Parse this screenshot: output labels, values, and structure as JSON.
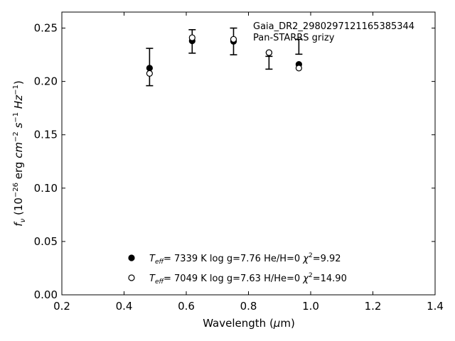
{
  "chart_data": {
    "type": "scatter",
    "xlabel": "Wavelength (μm)",
    "ylabel": "f_ν (10^-26 erg cm^-2 s^-1 Hz^-1)",
    "xlim": [
      0.2,
      1.4
    ],
    "ylim": [
      0.0,
      0.265
    ],
    "xticks": [
      "0.2",
      "0.4",
      "0.6",
      "0.8",
      "1.0",
      "1.2",
      "1.4"
    ],
    "yticks": [
      "0.00",
      "0.05",
      "0.10",
      "0.15",
      "0.20",
      "0.25"
    ],
    "xtick_values": [
      0.2,
      0.4,
      0.6,
      0.8,
      1.0,
      1.2,
      1.4
    ],
    "ytick_values": [
      0.0,
      0.05,
      0.1,
      0.15,
      0.2,
      0.25
    ],
    "grid": false,
    "annotation_lines": [
      "Gaia_DR2_2980297121165385344",
      "Pan-STARRS grizy"
    ],
    "observed": {
      "x": [
        0.482,
        0.619,
        0.752,
        0.866,
        0.962
      ],
      "y": [
        0.2135,
        0.2375,
        0.2375,
        0.2175,
        0.2325
      ],
      "yerr": [
        0.0175,
        0.011,
        0.0125,
        0.006,
        0.007
      ]
    },
    "series": [
      {
        "model": "DA",
        "marker": "filled",
        "legend": {
          "teff": "7339 K",
          "logg": "log g=7.76",
          "comp": "He/H=0",
          "chi2": "=9.92"
        },
        "x": [
          0.482,
          0.619,
          0.752,
          0.866,
          0.962
        ],
        "y": [
          0.2125,
          0.238,
          0.2375,
          0.227,
          0.216
        ]
      },
      {
        "model": "DB",
        "marker": "open",
        "legend": {
          "teff": "7049 K",
          "logg": "log g=7.63",
          "comp": "H/He=0",
          "chi2": "=14.90"
        },
        "x": [
          0.482,
          0.619,
          0.752,
          0.866,
          0.962
        ],
        "y": [
          0.2075,
          0.241,
          0.2395,
          0.227,
          0.2125
        ]
      }
    ]
  }
}
